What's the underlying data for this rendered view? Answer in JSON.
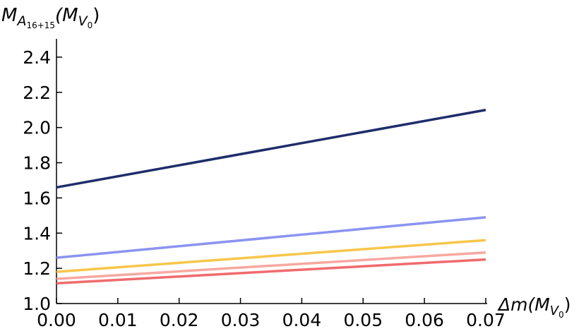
{
  "chart_data": {
    "type": "line",
    "y_label": [
      "M",
      "A",
      "16+15",
      "(M",
      "V",
      "0",
      ")"
    ],
    "x_label": [
      "Δm(M",
      "V",
      "0",
      ")"
    ],
    "x": [
      0,
      0.07
    ],
    "series": [
      {
        "color": "#1f2d6b",
        "values": [
          1.66,
          2.1
        ]
      },
      {
        "color": "#8b93f0",
        "values": [
          1.26,
          1.49
        ]
      },
      {
        "color": "#f7c64a",
        "values": [
          1.18,
          1.36
        ]
      },
      {
        "color": "#f7a8a0",
        "values": [
          1.14,
          1.29
        ]
      },
      {
        "color": "#f06a6e",
        "values": [
          1.115,
          1.25
        ]
      }
    ],
    "xlim": [
      0,
      0.07
    ],
    "xticks": [
      {
        "value": 0,
        "label": "0.00"
      },
      0.01,
      0.02,
      0.03,
      0.04,
      0.05,
      0.06,
      0.07
    ],
    "ylim": [
      1.0,
      2.5
    ],
    "yticks": [
      {
        "value": 1,
        "label": "1.0"
      },
      1.2,
      1.4,
      1.6,
      1.8,
      {
        "value": 2,
        "label": "2.0"
      },
      2.2,
      2.4
    ]
  }
}
